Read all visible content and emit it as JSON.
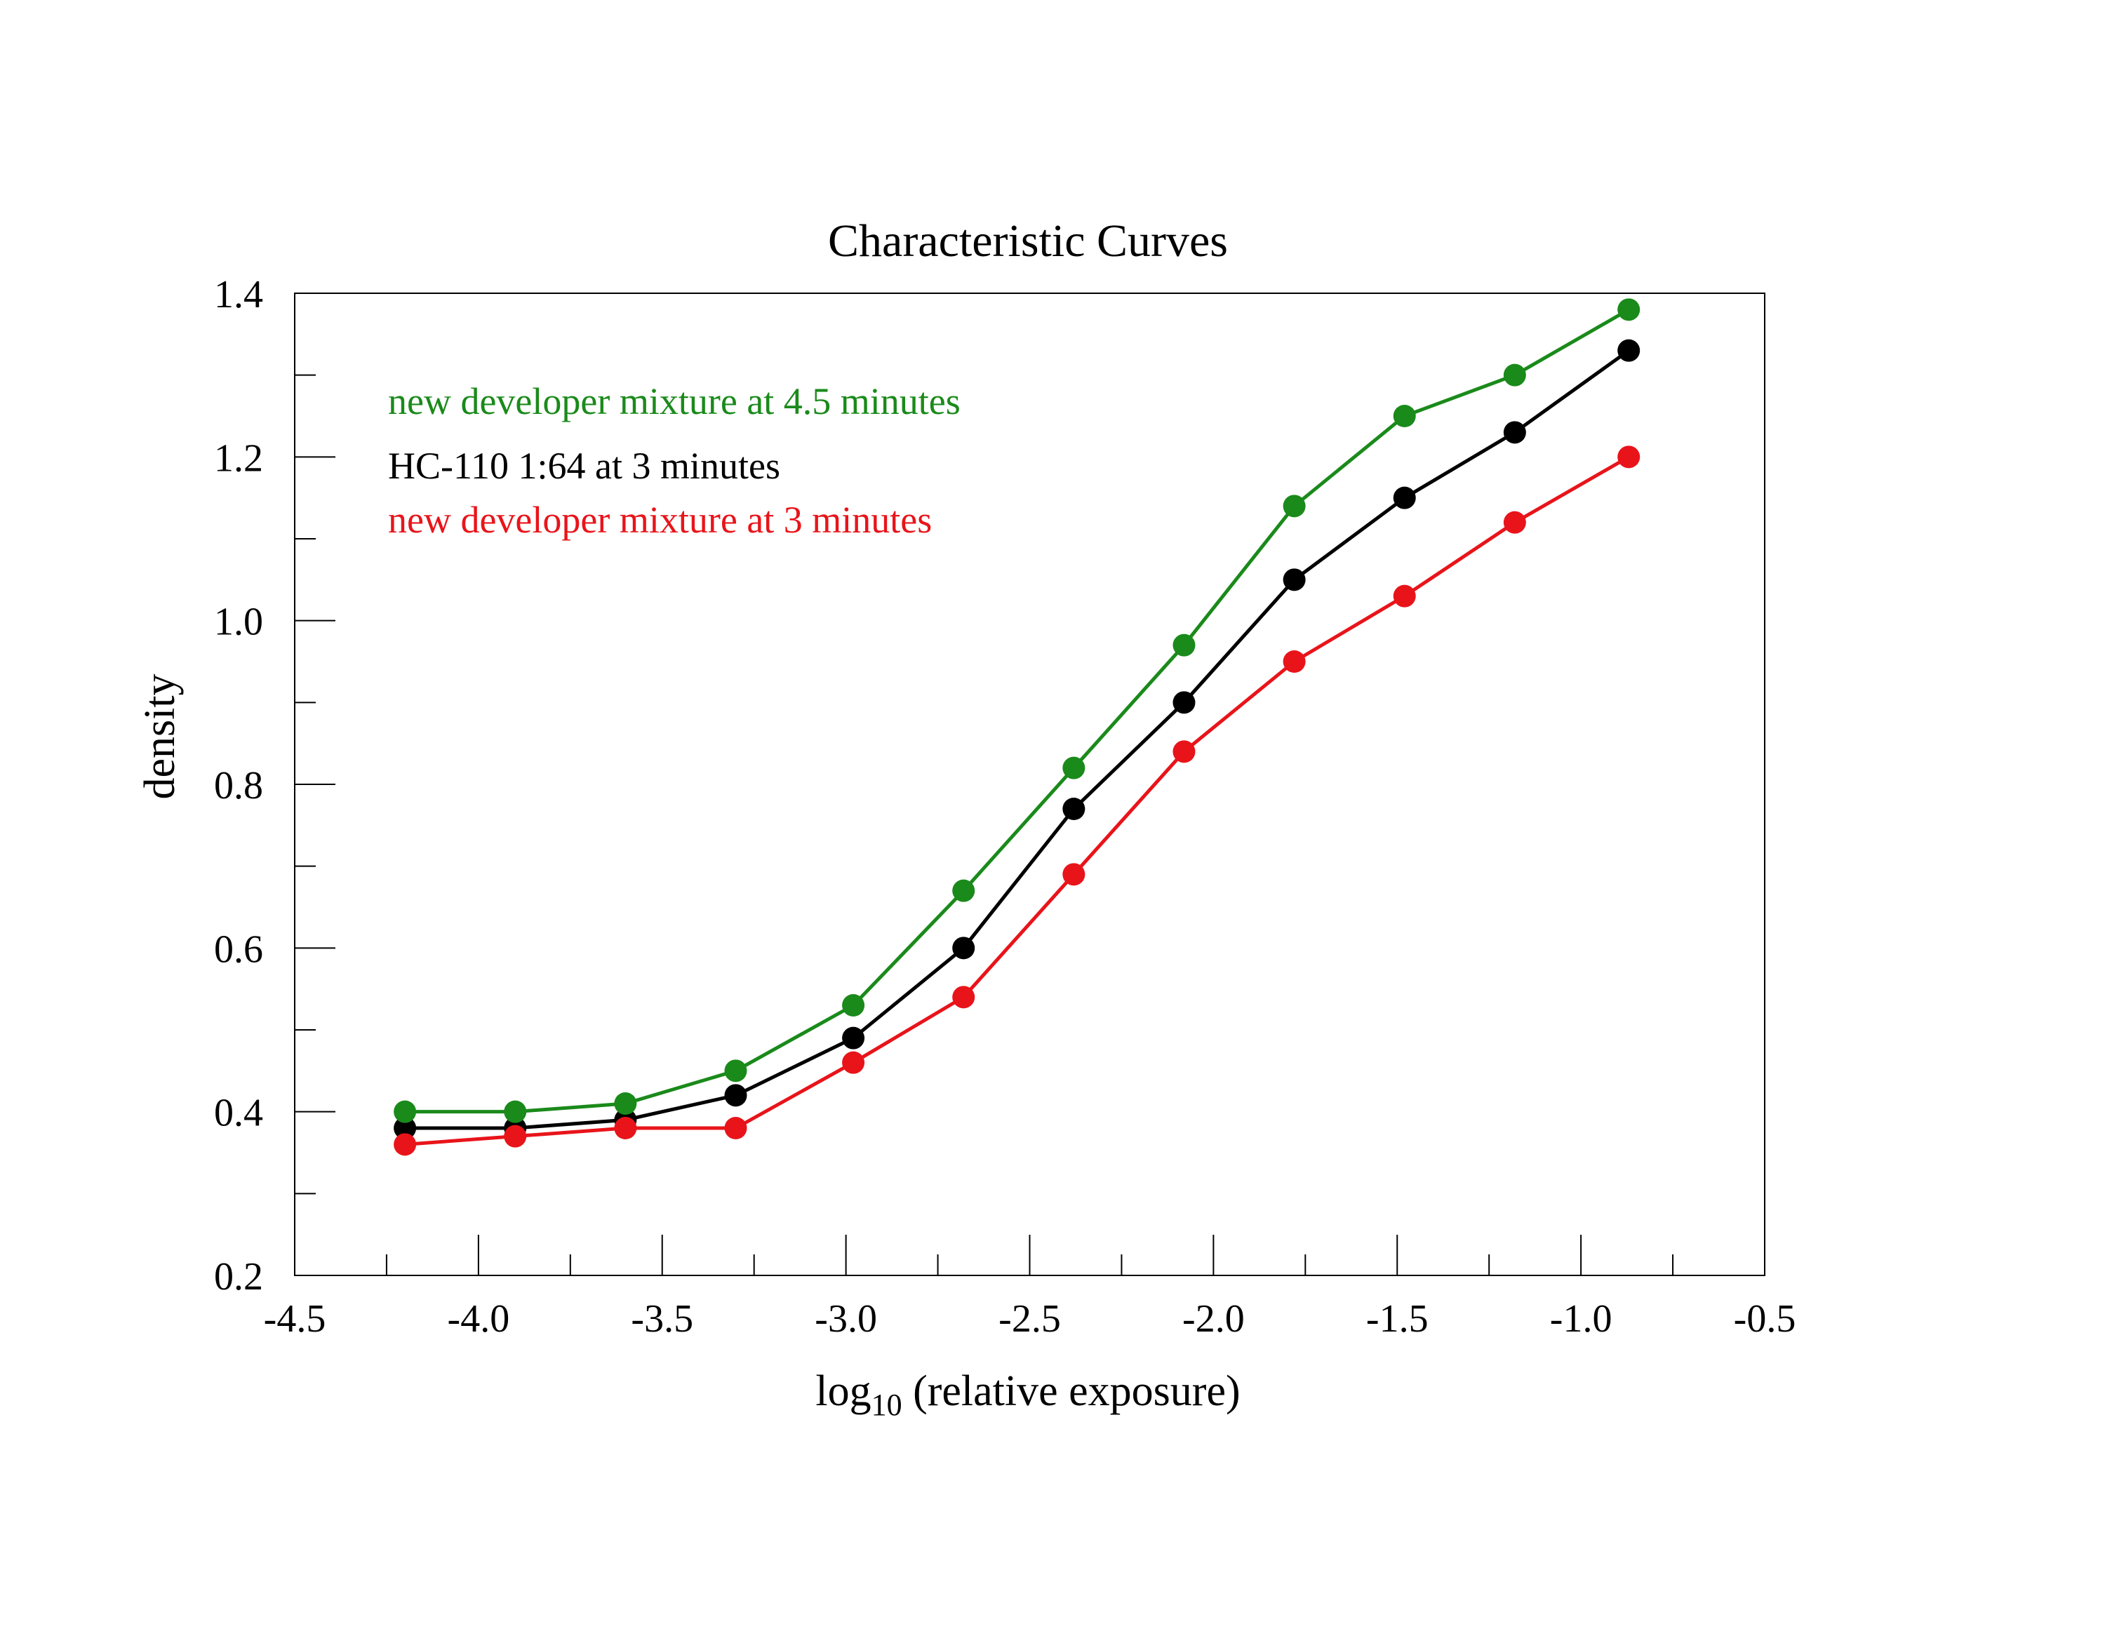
{
  "chart_data": {
    "type": "line",
    "title": "Characteristic Curves",
    "xlabel_main": "log",
    "xlabel_sub": "10",
    "xlabel_rest": " (relative exposure)",
    "ylabel": "density",
    "xlim": [
      -4.5,
      -0.5
    ],
    "ylim": [
      0.2,
      1.4
    ],
    "xticks": [
      -4.5,
      -4.0,
      -3.5,
      -3.0,
      -2.5,
      -2.0,
      -1.5,
      -1.0,
      -0.5
    ],
    "xtick_labels": [
      "-4.5",
      "-4.0",
      "-3.5",
      "-3.0",
      "-2.5",
      "-2.0",
      "-1.5",
      "-1.0",
      "-0.5"
    ],
    "yticks": [
      0.2,
      0.4,
      0.6,
      0.8,
      1.0,
      1.2,
      1.4
    ],
    "ytick_labels": [
      "0.2",
      "0.4",
      "0.6",
      "0.8",
      "1.0",
      "1.2",
      "1.4"
    ],
    "grid": false,
    "legend_placement": "top-left",
    "x": [
      -4.2,
      -3.9,
      -3.6,
      -3.3,
      -2.98,
      -2.68,
      -2.38,
      -2.08,
      -1.78,
      -1.48,
      -1.18,
      -0.87
    ],
    "series": [
      {
        "name": "new developer mixture at 4.5 minutes",
        "color": "#1a8a1a",
        "values": [
          0.4,
          0.4,
          0.41,
          0.45,
          0.53,
          0.67,
          0.82,
          0.97,
          1.14,
          1.25,
          1.3,
          1.38
        ]
      },
      {
        "name": "HC-110 1:64 at 3 minutes",
        "color": "#000000",
        "values": [
          0.38,
          0.38,
          0.39,
          0.42,
          0.49,
          0.6,
          0.77,
          0.9,
          1.05,
          1.15,
          1.23,
          1.33
        ]
      },
      {
        "name": "new developer mixture at 3 minutes",
        "color": "#e8141a",
        "values": [
          0.36,
          0.37,
          0.38,
          0.38,
          0.46,
          0.54,
          0.69,
          0.84,
          0.95,
          1.03,
          1.12,
          1.2
        ]
      }
    ]
  }
}
